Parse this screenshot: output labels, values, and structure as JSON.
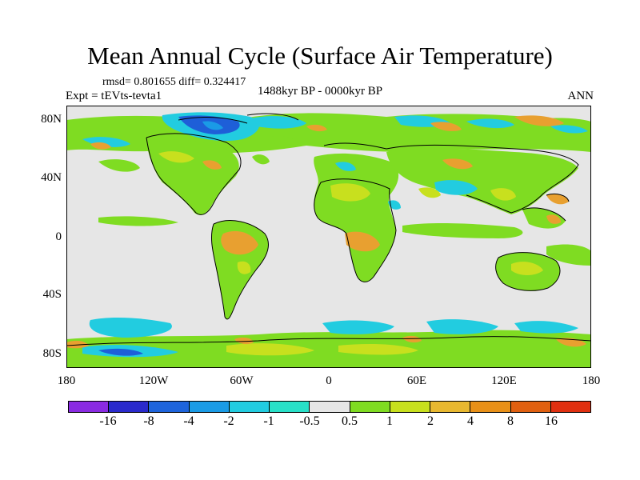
{
  "figure": {
    "title": "Mean Annual Cycle (Surface Air Temperature)",
    "stats": "rmsd= 0.801655 diff= 0.324417",
    "experiment": "Expt = tEVts-tevta1",
    "period": "1488kyr BP - 0000kyr BP",
    "season": "ANN"
  },
  "map": {
    "ocean_color": "#e6e6e6",
    "lat_labels": [
      "80N",
      "40N",
      "0",
      "40S",
      "80S"
    ],
    "lon_labels": [
      "180",
      "120W",
      "60W",
      "0",
      "60E",
      "120E",
      "180"
    ],
    "field_colors": {
      "cyan": "#22cce0",
      "blue": "#1e5fd8",
      "lightblue": "#1a9be6",
      "green": "#7fdc22",
      "yellowgreen": "#c8e01e",
      "orange": "#e8a030",
      "darkorange": "#e07010"
    }
  },
  "colorbar": {
    "labels": [
      "-16",
      "-8",
      "-4",
      "-2",
      "-1",
      "-0.5",
      "0.5",
      "1",
      "2",
      "4",
      "8",
      "16"
    ],
    "colors": [
      "#8a2be2",
      "#2a2acc",
      "#1e64dc",
      "#1a9be6",
      "#22cce0",
      "#28e0c8",
      "#e6e6e6",
      "#7fdc22",
      "#c8e01e",
      "#e8b830",
      "#e89018",
      "#e06010",
      "#e03010"
    ]
  }
}
